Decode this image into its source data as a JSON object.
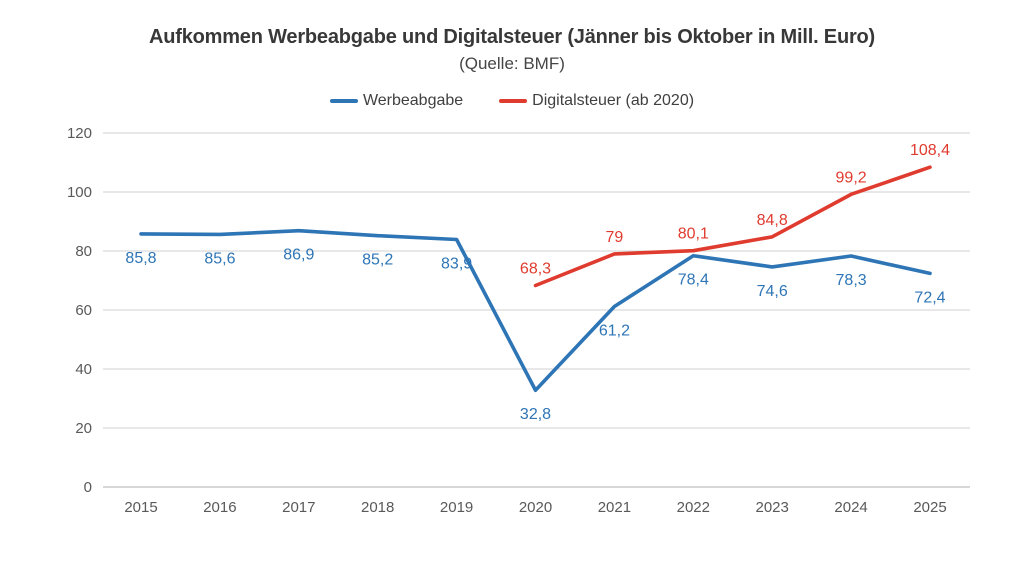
{
  "title": "Aufkommen Werbeabgabe und Digitalsteuer (Jänner bis Oktober in Mill. Euro)",
  "subtitle": "(Quelle: BMF)",
  "legend": [
    {
      "label": "Werbeabgabe",
      "color": "#2E75B6"
    },
    {
      "label": "Digitalsteuer (ab 2020)",
      "color": "#E03B2F"
    }
  ],
  "colors": {
    "werbeabgabe": "#2E75B6",
    "digitalsteuer": "#E03B2F",
    "gridline": "#D9D9D9",
    "baseline": "#BFBFBF",
    "axis_text": "#595959"
  },
  "chart_data": {
    "type": "line",
    "title": "Aufkommen Werbeabgabe und Digitalsteuer (Jänner bis Oktober in Mill. Euro)",
    "subtitle": "(Quelle: BMF)",
    "categories": [
      "2015",
      "2016",
      "2017",
      "2018",
      "2019",
      "2020",
      "2021",
      "2022",
      "2023",
      "2024",
      "2025"
    ],
    "series": [
      {
        "name": "Werbeabgabe",
        "color": "#2E75B6",
        "values": [
          85.8,
          85.6,
          86.9,
          85.2,
          83.9,
          32.8,
          61.2,
          78.4,
          74.6,
          78.3,
          72.4
        ],
        "labels": [
          "85,8",
          "85,6",
          "86,9",
          "85,2",
          "83,9",
          "32,8",
          "61,2",
          "78,4",
          "74,6",
          "78,3",
          "72,4"
        ],
        "label_position": "below"
      },
      {
        "name": "Digitalsteuer (ab 2020)",
        "color": "#E03B2F",
        "values": [
          null,
          null,
          null,
          null,
          null,
          68.3,
          79,
          80.1,
          84.8,
          99.2,
          108.4
        ],
        "labels": [
          null,
          null,
          null,
          null,
          null,
          "68,3",
          "79",
          "80,1",
          "84,8",
          "99,2",
          "108,4"
        ],
        "label_position": "above"
      }
    ],
    "ylim": [
      0,
      120
    ],
    "yticks": [
      0,
      20,
      40,
      60,
      80,
      100,
      120
    ],
    "grid": true,
    "legend_position": "top"
  }
}
